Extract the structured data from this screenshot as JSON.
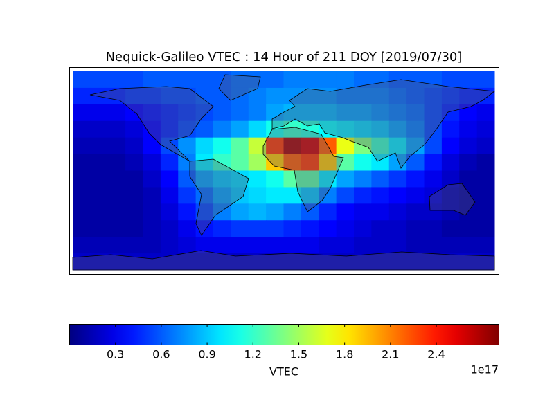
{
  "chart_data": {
    "type": "heatmap",
    "title": "Nequick-Galileo VTEC : 14 Hour of 211 DOY [2019/07/30]",
    "colormap": "jet",
    "xlim": [
      -180,
      180
    ],
    "ylim": [
      -85,
      85
    ],
    "values": [
      [
        0.55,
        0.55,
        0.55,
        0.55,
        0.6,
        0.6,
        0.6,
        0.6,
        0.6,
        0.65,
        0.65,
        0.65,
        0.7,
        0.7,
        0.7,
        0.7,
        0.65,
        0.65,
        0.6,
        0.6,
        0.6,
        0.55,
        0.55,
        0.55
      ],
      [
        0.45,
        0.45,
        0.45,
        0.5,
        0.5,
        0.55,
        0.55,
        0.6,
        0.6,
        0.65,
        0.7,
        0.75,
        0.75,
        0.75,
        0.75,
        0.7,
        0.7,
        0.7,
        0.65,
        0.6,
        0.55,
        0.5,
        0.45,
        0.45
      ],
      [
        0.3,
        0.3,
        0.3,
        0.35,
        0.4,
        0.45,
        0.5,
        0.55,
        0.6,
        0.65,
        0.7,
        0.8,
        0.85,
        0.85,
        0.85,
        0.8,
        0.8,
        0.75,
        0.7,
        0.65,
        0.55,
        0.45,
        0.35,
        0.3
      ],
      [
        0.2,
        0.2,
        0.2,
        0.25,
        0.35,
        0.45,
        0.55,
        0.6,
        0.7,
        0.8,
        0.95,
        1.1,
        1.2,
        1.15,
        1.05,
        1.0,
        0.95,
        0.9,
        0.8,
        0.7,
        0.55,
        0.4,
        0.3,
        0.25
      ],
      [
        0.15,
        0.15,
        0.15,
        0.2,
        0.35,
        0.55,
        0.75,
        0.95,
        1.1,
        1.3,
        1.6,
        2.3,
        2.7,
        2.6,
        2.2,
        1.7,
        1.4,
        1.2,
        1.0,
        0.8,
        0.55,
        0.35,
        0.25,
        0.2
      ],
      [
        0.1,
        0.1,
        0.1,
        0.15,
        0.25,
        0.45,
        0.7,
        1.0,
        1.2,
        1.3,
        1.5,
        1.9,
        2.2,
        2.3,
        1.9,
        1.3,
        1.1,
        1.0,
        0.8,
        0.6,
        0.4,
        0.25,
        0.15,
        0.1
      ],
      [
        0.1,
        0.1,
        0.1,
        0.1,
        0.2,
        0.35,
        0.6,
        0.8,
        0.9,
        0.95,
        1.0,
        1.1,
        1.3,
        1.3,
        1.0,
        0.8,
        0.7,
        0.6,
        0.5,
        0.4,
        0.3,
        0.2,
        0.1,
        0.1
      ],
      [
        0.1,
        0.1,
        0.1,
        0.1,
        0.15,
        0.3,
        0.5,
        0.65,
        0.8,
        0.9,
        0.95,
        1.0,
        1.0,
        0.9,
        0.7,
        0.55,
        0.45,
        0.4,
        0.35,
        0.3,
        0.25,
        0.15,
        0.1,
        0.1
      ],
      [
        0.1,
        0.1,
        0.1,
        0.1,
        0.15,
        0.25,
        0.4,
        0.55,
        0.7,
        0.8,
        0.85,
        0.8,
        0.7,
        0.6,
        0.45,
        0.35,
        0.3,
        0.3,
        0.25,
        0.2,
        0.2,
        0.15,
        0.1,
        0.1
      ],
      [
        0.1,
        0.1,
        0.1,
        0.1,
        0.15,
        0.2,
        0.3,
        0.4,
        0.45,
        0.5,
        0.5,
        0.5,
        0.45,
        0.4,
        0.35,
        0.3,
        0.25,
        0.2,
        0.2,
        0.15,
        0.15,
        0.1,
        0.1,
        0.1
      ],
      [
        0.15,
        0.15,
        0.15,
        0.15,
        0.15,
        0.2,
        0.25,
        0.3,
        0.3,
        0.3,
        0.3,
        0.3,
        0.3,
        0.3,
        0.25,
        0.25,
        0.2,
        0.2,
        0.2,
        0.15,
        0.15,
        0.15,
        0.15,
        0.15
      ],
      [
        0.2,
        0.2,
        0.2,
        0.2,
        0.2,
        0.2,
        0.2,
        0.2,
        0.2,
        0.2,
        0.2,
        0.2,
        0.2,
        0.2,
        0.2,
        0.2,
        0.2,
        0.2,
        0.2,
        0.2,
        0.2,
        0.2,
        0.2,
        0.2
      ]
    ],
    "colorbar": {
      "clim": [
        0,
        2.81
      ],
      "ticks": [
        0.3,
        0.6,
        0.9,
        1.2,
        1.5,
        1.8,
        2.1,
        2.4
      ],
      "label": "VTEC",
      "offset_label": "1e17"
    }
  }
}
